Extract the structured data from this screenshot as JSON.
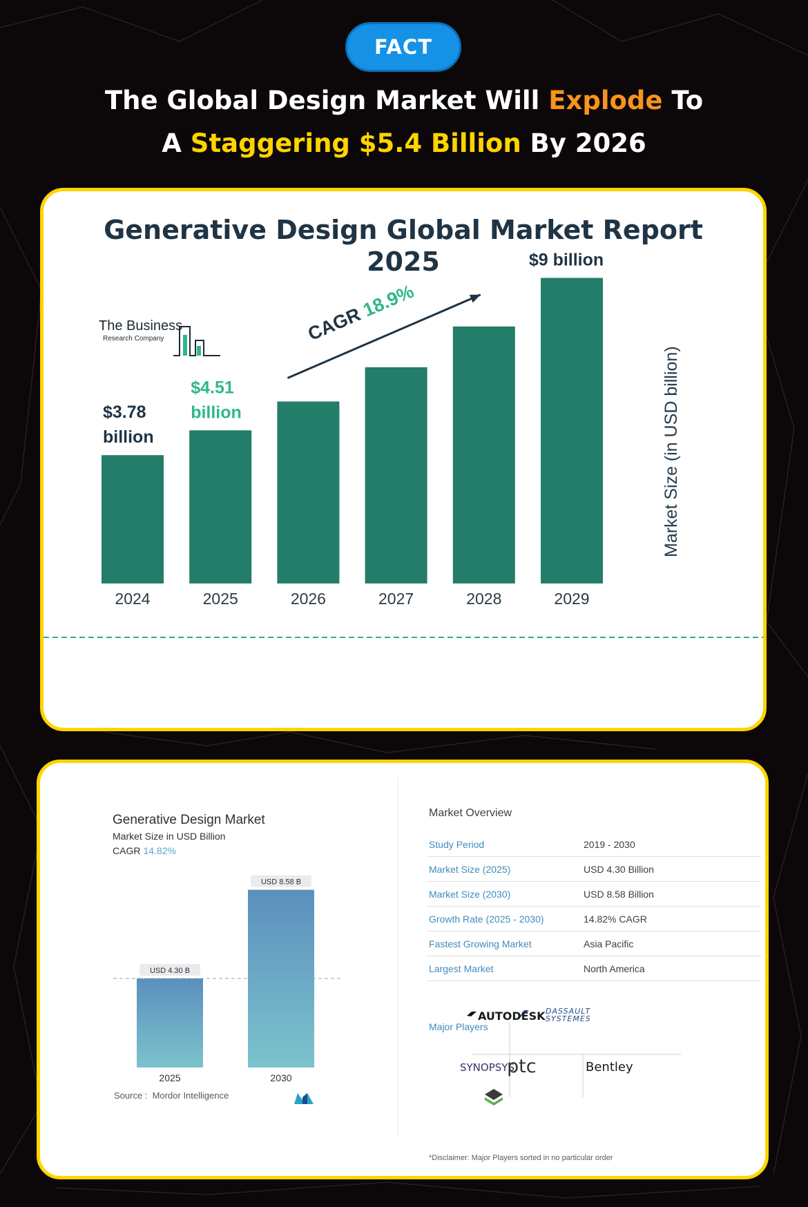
{
  "header": {
    "badge": "FACT",
    "headline_line1": {
      "part1": "The Global Design Market Will ",
      "highlight": "Explode",
      "part2": " To"
    },
    "headline_line2": {
      "part1": "A ",
      "highlight": "Staggering $5.4 Billion",
      "part2": " By 2026"
    },
    "colors": {
      "badge": "#1592e6",
      "orange": "#f7931e",
      "yellow": "#ffd400"
    }
  },
  "report_card": {
    "logo": {
      "name": "The Business",
      "sub": "Research Company"
    },
    "cagr_label": "CAGR",
    "cagr_value": "18.9%",
    "colors": {
      "bar": "#237d68",
      "highlight_label": "#2fb88a",
      "label": "#1f3445"
    }
  },
  "overview_card": {
    "source_label": "Source :",
    "source_name": "Mordor Intelligence",
    "market_overview": {
      "title": "Market Overview",
      "rows": [
        {
          "key": "Study Period",
          "value": "2019 - 2030"
        },
        {
          "key": "Market Size (2025)",
          "value": "USD 4.30 Billion"
        },
        {
          "key": "Market Size (2030)",
          "value": "USD 8.58 Billion"
        },
        {
          "key": "Growth Rate (2025 - 2030)",
          "value": "14.82% CAGR"
        },
        {
          "key": "Fastest Growing Market",
          "value": "Asia Pacific"
        },
        {
          "key": "Largest Market",
          "value": "North America"
        }
      ]
    },
    "major_players": {
      "title": "Major Players",
      "logos": [
        "AUTODESK",
        "DASSAULT SYSTEMES",
        "SYNOPSYS",
        "ptc",
        "Bentley"
      ]
    },
    "disclaimer": "*Disclaimer: Major Players sorted in no particular order"
  },
  "chart_data": [
    {
      "type": "bar",
      "title": "Generative Design Global Market Report 2025",
      "title_lines": [
        "Generative Design Global Market Report",
        "2025"
      ],
      "categories": [
        "2024",
        "2025",
        "2026",
        "2027",
        "2028",
        "2029"
      ],
      "values": [
        3.78,
        4.51,
        5.36,
        6.37,
        7.57,
        9.0
      ],
      "data_labels": [
        {
          "category": "2024",
          "lines": [
            "$3.78",
            "billion"
          ]
        },
        {
          "category": "2025",
          "lines": [
            "$4.51",
            "billion"
          ]
        },
        {
          "category": "2029",
          "lines": [
            "$9 billion"
          ]
        }
      ],
      "ylabel": "Market Size (in USD billion)",
      "annotation": "CAGR 18.9%",
      "ylim": [
        0,
        9.6
      ],
      "grid": false
    },
    {
      "type": "bar",
      "title": "Generative Design Market",
      "subtitle": "Market Size in USD Billion",
      "cagr": "CAGR",
      "cagr_value": "14.82%",
      "categories": [
        "2025",
        "2030"
      ],
      "values": [
        4.3,
        8.58
      ],
      "data_labels": [
        "USD 4.30 B",
        "USD 8.58 B"
      ],
      "ylim": [
        0,
        9.4
      ],
      "grid": false
    }
  ]
}
